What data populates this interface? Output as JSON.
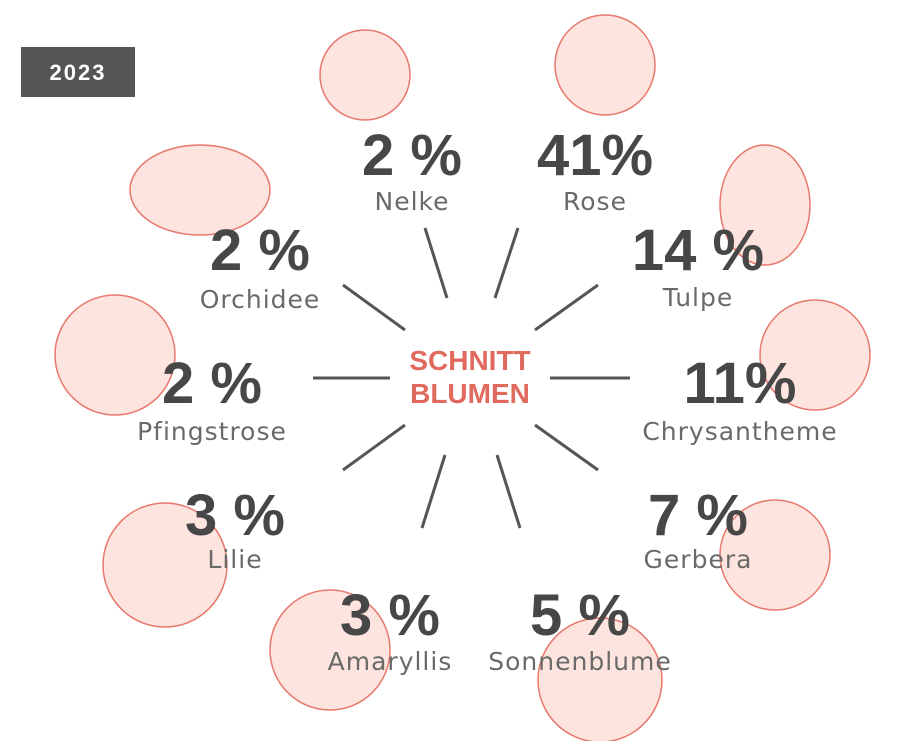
{
  "badge": "2023",
  "center": {
    "line1": "SCHNITT",
    "line2": "BLUMEN"
  },
  "items": [
    {
      "name": "Nelke",
      "share": "2 %"
    },
    {
      "name": "Rose",
      "share": "41%"
    },
    {
      "name": "Tulpe",
      "share": "14 %"
    },
    {
      "name": "Chrysantheme",
      "share": "11%"
    },
    {
      "name": "Gerbera",
      "share": "7 %"
    },
    {
      "name": "Sonnenblume",
      "share": "5 %"
    },
    {
      "name": "Amaryllis",
      "share": "3 %"
    },
    {
      "name": "Lilie",
      "share": "3 %"
    },
    {
      "name": "Pfingstrose",
      "share": "2 %"
    },
    {
      "name": "Orchidee",
      "share": "2 %"
    }
  ]
}
